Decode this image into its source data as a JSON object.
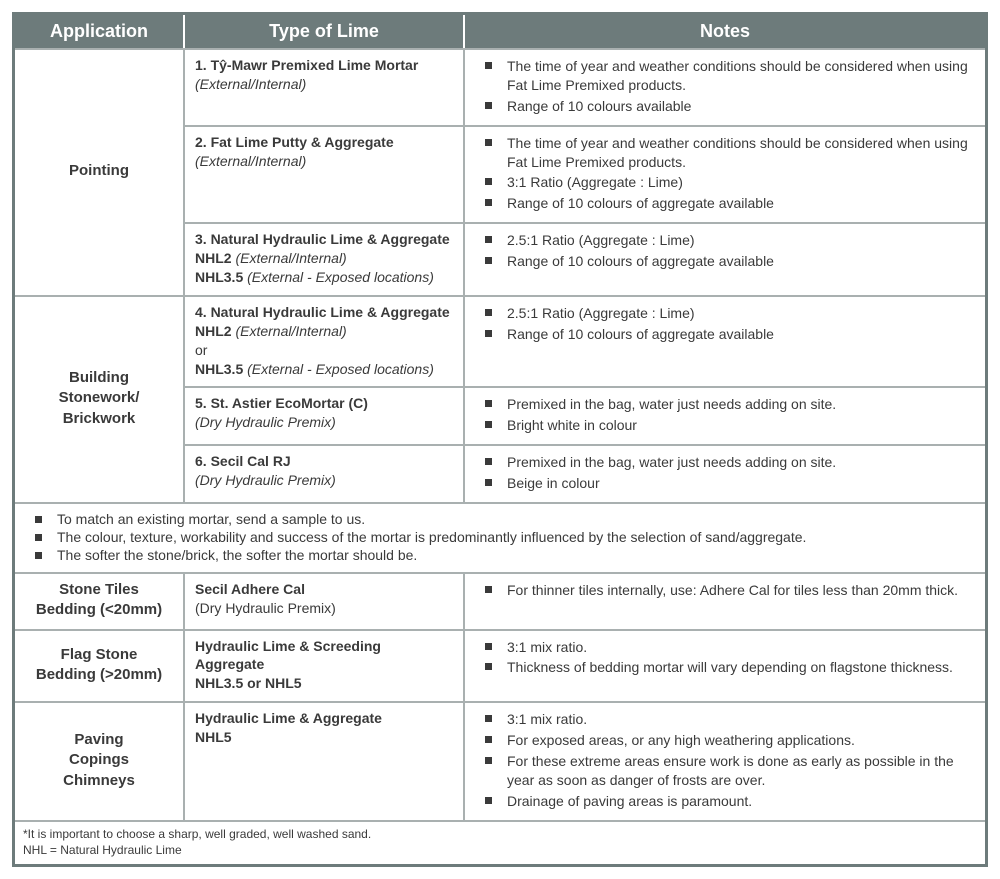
{
  "colors": {
    "header_bg": "#6d7b7b",
    "header_fg": "#ffffff",
    "border_outer": "#6d7b7b",
    "border_inner": "#a9b0b0",
    "text": "#3a3a3a",
    "page_bg": "#ffffff"
  },
  "headers": {
    "application": "Application",
    "type_of_lime": "Type of Lime",
    "notes": "Notes"
  },
  "rows": {
    "pointing": {
      "label": "Pointing",
      "r1": {
        "title": "1. Tŷ-Mawr Premixed Lime Mortar",
        "sub": "(External/Internal)",
        "n1": "The time of year and weather conditions should be considered when using Fat Lime Premixed products.",
        "n2": "Range of 10 colours available"
      },
      "r2": {
        "title": "2. Fat Lime Putty & Aggregate",
        "sub": "(External/Internal)",
        "n1": "The time of year and weather conditions should be considered when using Fat Lime Premixed products.",
        "n2": "3:1 Ratio (Aggregate : Lime)",
        "n3": "Range of 10 colours of aggregate available"
      },
      "r3": {
        "title": "3. Natural Hydraulic Lime & Aggregate",
        "l1a": "NHL2 ",
        "l1b": "(External/Internal)",
        "l2a": "NHL3.5 ",
        "l2b": "(External - Exposed locations)",
        "n1": "2.5:1 Ratio (Aggregate : Lime)",
        "n2": "Range of 10 colours of aggregate available"
      }
    },
    "building": {
      "label_l1": "Building",
      "label_l2": "Stonework/",
      "label_l3": "Brickwork",
      "r4": {
        "title": "4. Natural Hydraulic Lime & Aggregate",
        "l1a": "NHL2 ",
        "l1b": "(External/Internal)",
        "or": "or",
        "l2a": "NHL3.5 ",
        "l2b": "(External - Exposed locations)",
        "n1": "2.5:1 Ratio (Aggregate : Lime)",
        "n2": "Range of 10 colours of aggregate available"
      },
      "r5": {
        "title": "5. St. Astier EcoMortar (C)",
        "sub": "(Dry Hydraulic Premix)",
        "n1": "Premixed in the bag, water just needs adding on site.",
        "n2": "Bright white in colour"
      },
      "r6": {
        "title": "6. Secil Cal RJ",
        "sub": "(Dry Hydraulic Premix)",
        "n1": "Premixed in the bag, water just needs adding on site.",
        "n2": "Beige in colour"
      }
    },
    "midnotes": {
      "n1": "To match an existing mortar, send a sample to us.",
      "n2": "The colour, texture, workability and success of the mortar is predominantly influenced by the selection of sand/aggregate.",
      "n3": "The softer the stone/brick, the softer the mortar should be."
    },
    "stonetiles": {
      "label_l1": "Stone Tiles",
      "label_l2": "Bedding (<20mm)",
      "title": "Secil Adhere Cal",
      "sub": "(Dry Hydraulic Premix)",
      "n1": "For thinner tiles internally, use: Adhere Cal for tiles less than 20mm thick."
    },
    "flagstone": {
      "label_l1": "Flag Stone",
      "label_l2": "Bedding (>20mm)",
      "title": "Hydraulic Lime & Screeding Aggregate",
      "sub": "NHL3.5 or NHL5",
      "n1": "3:1 mix ratio.",
      "n2": "Thickness of bedding mortar will vary depending on flagstone thickness."
    },
    "paving": {
      "label_l1": "Paving",
      "label_l2": "Copings",
      "label_l3": "Chimneys",
      "title": "Hydraulic Lime & Aggregate",
      "sub": "NHL5",
      "n1": "3:1 mix ratio.",
      "n2": "For exposed areas, or any high weathering applications.",
      "n3": "For these extreme areas ensure work is done as early as possible in the year as soon as danger of frosts are over.",
      "n4": "Drainage of paving areas is paramount."
    },
    "footnote": {
      "l1": "*It is important to choose a sharp, well graded, well washed sand.",
      "l2": "NHL = Natural Hydraulic Lime"
    }
  }
}
